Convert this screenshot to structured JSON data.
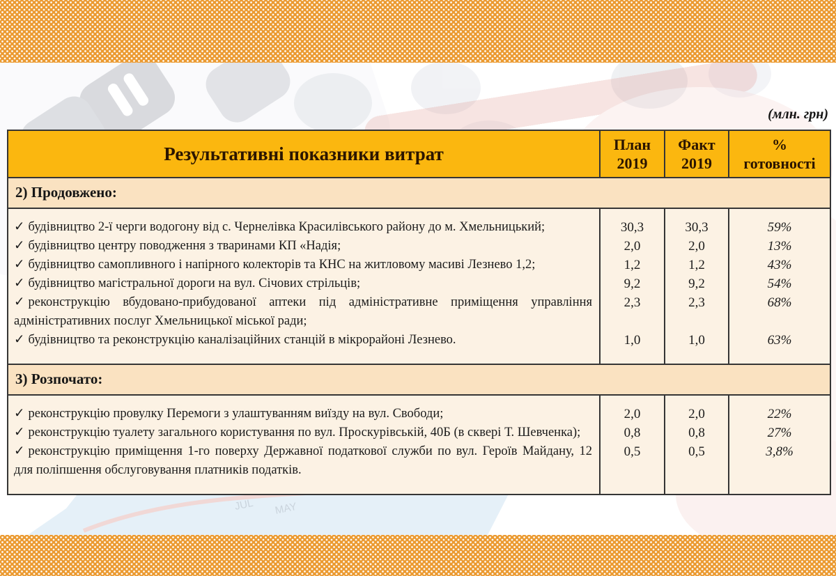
{
  "note": "(млн. грн)",
  "check_glyph": "✓",
  "colors": {
    "band_orange": "#eb9a31",
    "header_gold": "#fbb70f",
    "section_peach": "#fae2c1",
    "row_cream": "#fcf2e4",
    "header_text": "#2b1500",
    "border": "#353535"
  },
  "background_photo": {
    "description": "faded calculator keys, red pen and blue chart illustration",
    "faint_labels": [
      "JUL",
      "MAY"
    ]
  },
  "table": {
    "header": {
      "title": "Результативні показники витрат",
      "plan_l1": "План",
      "plan_l2": "2019",
      "fact_l1": "Факт",
      "fact_l2": "2019",
      "pct_l1": "%",
      "pct_l2": "готовності"
    },
    "sections": [
      {
        "label": "2) Продовжено:",
        "rows": [
          {
            "desc": "будівництво 2-ї черги водогону від с. Чернелівка Красилівського району до м. Хмельницький;",
            "plan": "30,3",
            "fact": "30,3",
            "pct": "59%"
          },
          {
            "desc": "будівництво центру поводження з тваринами КП «Надія;",
            "plan": "2,0",
            "fact": "2,0",
            "pct": "13%"
          },
          {
            "desc": "будівництво самопливного і напірного колекторів та КНС на житловому масиві Лезнево 1,2;",
            "plan": "1,2",
            "fact": "1,2",
            "pct": "43%"
          },
          {
            "desc": "будівництво магістральної дороги на вул. Січових стрільців;",
            "plan": "9,2",
            "fact": "9,2",
            "pct": "54%"
          },
          {
            "desc": "реконструкцію вбудовано-прибудованої аптеки під адміністративне приміщення управління адміністративних послуг Хмельницької міської ради;",
            "plan": "2,3",
            "fact": "2,3",
            "pct": "68%"
          },
          {
            "desc": "будівництво та реконструкцію каналізаційних станцій в мікрорайоні Лезнево.",
            "plan": "1,0",
            "fact": "1,0",
            "pct": "63%"
          }
        ]
      },
      {
        "label": "3) Розпочато:",
        "rows": [
          {
            "desc": "реконструкцію провулку Перемоги з улаштуванням виїзду на вул. Свободи;",
            "plan": "2,0",
            "fact": "2,0",
            "pct": "22%"
          },
          {
            "desc": "реконструкцію туалету загального користування по вул. Проскурівській, 40Б (в сквері Т. Шевченка);",
            "plan": "0,8",
            "fact": "0,8",
            "pct": "27%"
          },
          {
            "desc": "реконструкцію приміщення 1-го поверху Державної податкової служби по вул. Героїв Майдану, 12 для поліпшення обслуговування платників податків.",
            "plan": "0,5",
            "fact": "0,5",
            "pct": "3,8%"
          }
        ]
      }
    ]
  }
}
